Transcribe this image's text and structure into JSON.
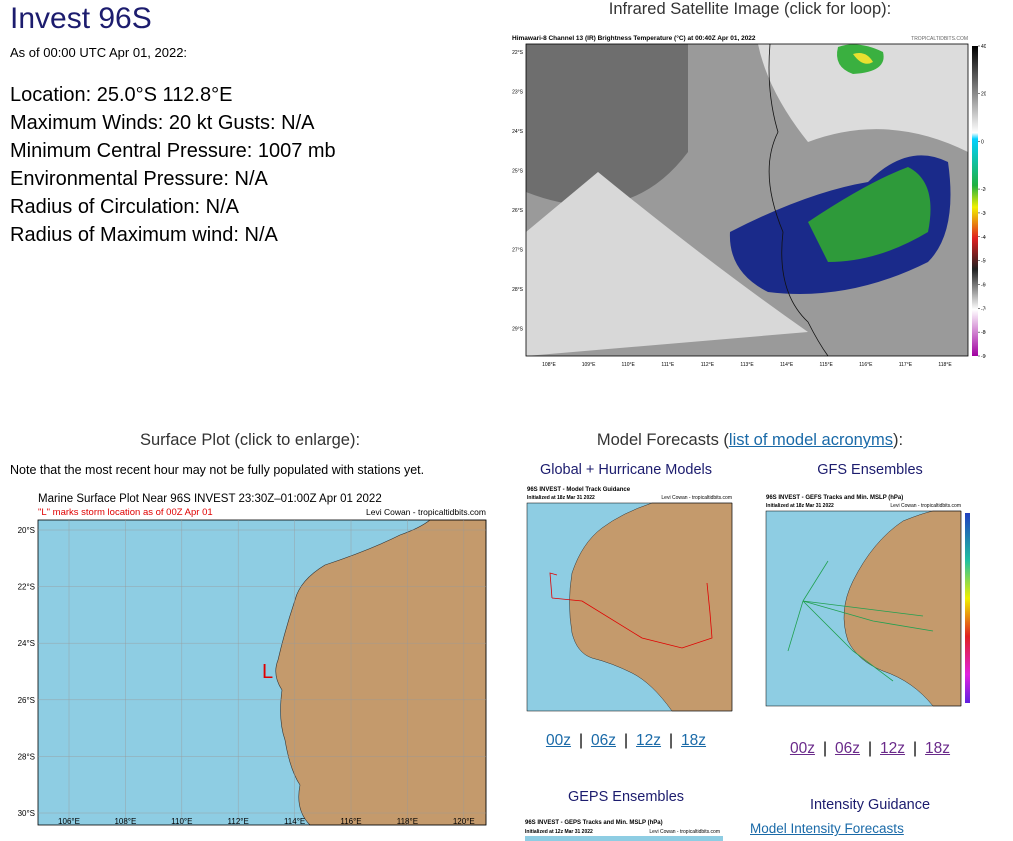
{
  "header": {
    "title": "Invest 96S",
    "as_of": "As of 00:00 UTC Apr 01, 2022:"
  },
  "details": [
    "Location: 25.0°S 112.8°E",
    "Maximum Winds: 20 kt  Gusts: N/A",
    "Minimum Central Pressure: 1007 mb",
    "Environmental Pressure: N/A",
    "Radius of Circulation: N/A",
    "Radius of Maximum wind: N/A"
  ],
  "satellite": {
    "heading": "Infrared Satellite Image (click for loop):",
    "image_title": "Himawari-8 Channel 13 (IR) Brightness Temperature (°C) at 00:40Z Apr 01, 2022",
    "credit": "TROPICALTIDBITS.COM",
    "lat_labels": [
      "22°S",
      "23°S",
      "24°S",
      "25°S",
      "26°S",
      "27°S",
      "28°S",
      "29°S"
    ],
    "lon_labels": [
      "108°E",
      "109°E",
      "110°E",
      "111°E",
      "112°E",
      "113°E",
      "114°E",
      "115°E",
      "116°E",
      "117°E",
      "118°E"
    ],
    "colorbar_ticks": [
      40,
      20,
      0,
      -20,
      -30,
      -40,
      -50,
      -60,
      -70,
      -80,
      -90
    ]
  },
  "surface": {
    "heading": "Surface Plot (click to enlarge):",
    "note": "Note that the most recent hour may not be fully populated with stations yet.",
    "image_title": "Marine Surface Plot Near 96S INVEST 23:30Z–01:00Z Apr 01 2022",
    "image_subtitle": "\"L\" marks storm location as of 00Z Apr 01",
    "credit": "Levi Cowan - tropicaltidbits.com",
    "storm_marker": "L",
    "lat_labels": [
      "20°S",
      "22°S",
      "24°S",
      "26°S",
      "28°S",
      "30°S"
    ],
    "lon_labels": [
      "106°E",
      "108°E",
      "110°E",
      "112°E",
      "114°E",
      "116°E",
      "118°E",
      "120°E"
    ]
  },
  "models": {
    "heading_prefix": "Model Forecasts (",
    "heading_link": "list of model acronyms",
    "heading_suffix": "):",
    "separator": "|",
    "global": {
      "title": "Global + Hurricane Models",
      "image_title": "96S INVEST - Model Track Guidance",
      "image_init": "Initialized at 18z Mar 31 2022",
      "credit": "Levi Cowan - tropicaltidbits.com",
      "runs": [
        "00z",
        "06z",
        "12z",
        "18z"
      ]
    },
    "gfs": {
      "title": "GFS Ensembles",
      "image_title": "96S INVEST - GEFS Tracks and Min. MSLP (hPa)",
      "image_init": "Initialized at 18z Mar 31 2022",
      "credit": "Levi Cowan - tropicaltidbits.com",
      "runs": [
        "00z",
        "06z",
        "12z",
        "18z"
      ]
    },
    "geps": {
      "title": "GEPS Ensembles",
      "image_title": "96S INVEST - GEPS Tracks and Min. MSLP (hPa)",
      "image_init": "Initialized at 12z Mar 31 2022",
      "credit": "Levi Cowan - tropicaltidbits.com"
    },
    "intensity": {
      "title": "Intensity Guidance",
      "link": "Model Intensity Forecasts"
    }
  }
}
